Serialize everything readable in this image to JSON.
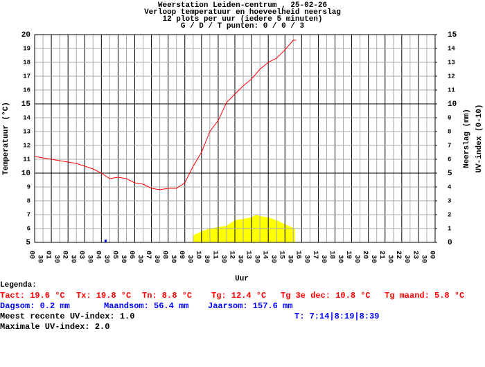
{
  "chart_data": {
    "type": "line",
    "title": [
      "Weerstation Leiden-centrum , 25-02-26",
      "Verloop temperatuur en hoeveelheid neerslag",
      "12 plots per uur (iedere 5 minuten)",
      "G / D / T punten: 0 / 0 / 3"
    ],
    "x_label": "Uur",
    "y_label": "Temperatuur (°C)",
    "y2_label": [
      "Neerslag (mm)",
      "UV-index (0-10)"
    ],
    "xlim": [
      0,
      24
    ],
    "xticks": [
      {
        "value": 0,
        "label": "00"
      },
      {
        "value": 0.5,
        "label": "30"
      },
      {
        "value": 1,
        "label": "01"
      },
      {
        "value": 1.5,
        "label": "30"
      },
      {
        "value": 2,
        "label": "02"
      },
      {
        "value": 2.5,
        "label": "30"
      },
      {
        "value": 3,
        "label": "03"
      },
      {
        "value": 3.5,
        "label": "30"
      },
      {
        "value": 4,
        "label": "04"
      },
      {
        "value": 4.5,
        "label": "30"
      },
      {
        "value": 5,
        "label": "05"
      },
      {
        "value": 5.5,
        "label": "30"
      },
      {
        "value": 6,
        "label": "06"
      },
      {
        "value": 6.5,
        "label": "30"
      },
      {
        "value": 7,
        "label": "07"
      },
      {
        "value": 7.5,
        "label": "30"
      },
      {
        "value": 8,
        "label": "08"
      },
      {
        "value": 8.5,
        "label": "30"
      },
      {
        "value": 9,
        "label": "09"
      },
      {
        "value": 9.5,
        "label": "30"
      },
      {
        "value": 10,
        "label": "10"
      },
      {
        "value": 10.5,
        "label": "30"
      },
      {
        "value": 11,
        "label": "11"
      },
      {
        "value": 11.5,
        "label": "30"
      },
      {
        "value": 12,
        "label": "12"
      },
      {
        "value": 12.5,
        "label": "30"
      },
      {
        "value": 13,
        "label": "13"
      },
      {
        "value": 13.5,
        "label": "30"
      },
      {
        "value": 14,
        "label": "14"
      },
      {
        "value": 14.5,
        "label": "30"
      },
      {
        "value": 15,
        "label": "15"
      },
      {
        "value": 15.5,
        "label": "30"
      },
      {
        "value": 16,
        "label": "16"
      },
      {
        "value": 16.5,
        "label": "30"
      },
      {
        "value": 17,
        "label": "17"
      },
      {
        "value": 17.5,
        "label": "30"
      },
      {
        "value": 18,
        "label": "18"
      },
      {
        "value": 18.5,
        "label": "30"
      },
      {
        "value": 19,
        "label": "19"
      },
      {
        "value": 19.5,
        "label": "30"
      },
      {
        "value": 20,
        "label": "20"
      },
      {
        "value": 20.5,
        "label": "30"
      },
      {
        "value": 21,
        "label": "21"
      },
      {
        "value": 21.5,
        "label": "30"
      },
      {
        "value": 22,
        "label": "22"
      },
      {
        "value": 22.5,
        "label": "30"
      },
      {
        "value": 23,
        "label": "23"
      },
      {
        "value": 23.5,
        "label": "30"
      },
      {
        "value": 24,
        "label": "00"
      }
    ],
    "ylim": [
      5,
      20
    ],
    "yticks": [
      5,
      6,
      7,
      8,
      9,
      10,
      11,
      12,
      13,
      14,
      15,
      16,
      17,
      18,
      19,
      20
    ],
    "y2lim": [
      0,
      15
    ],
    "y2ticks": [
      0,
      1,
      2,
      3,
      4,
      5,
      6,
      7,
      8,
      9,
      10,
      11,
      12,
      13,
      14,
      15
    ],
    "grid": true,
    "series": [
      {
        "type": "line",
        "color": "#ff0000",
        "x": [
          0,
          0.5,
          1,
          1.5,
          2,
          2.5,
          3,
          3.5,
          4,
          4.5,
          5,
          5.5,
          6,
          6.5,
          7,
          7.5,
          8,
          8.5,
          9,
          9.5,
          10,
          10.5,
          11,
          11.5,
          12,
          12.5,
          13,
          13.5,
          14,
          14.5,
          15,
          15.5,
          15.67
        ],
        "values": [
          11.2,
          11.1,
          11.0,
          10.9,
          10.8,
          10.7,
          10.5,
          10.3,
          10.0,
          9.6,
          9.7,
          9.6,
          9.3,
          9.2,
          8.9,
          8.8,
          8.9,
          8.9,
          9.3,
          10.5,
          11.5,
          13.0,
          13.8,
          15.1,
          15.7,
          16.3,
          16.8,
          17.5,
          18.0,
          18.3,
          18.9,
          19.6,
          19.6
        ]
      },
      {
        "type": "area",
        "color": "#ffff00",
        "axis": "y2",
        "x": [
          9.5,
          10,
          10.5,
          11,
          11.5,
          12,
          12.5,
          13,
          13.25,
          13.5,
          14,
          14.5,
          15,
          15.4,
          15.6
        ],
        "values": [
          0.5,
          0.8,
          1.0,
          1.1,
          1.2,
          1.6,
          1.7,
          1.8,
          2.0,
          1.9,
          1.8,
          1.6,
          1.3,
          1.1,
          1.0
        ]
      },
      {
        "type": "bar",
        "color": "#0000ff",
        "axis": "y2",
        "x": [
          4.25
        ],
        "values": [
          0.2
        ]
      }
    ],
    "legend_title": "Legenda:",
    "notes": [
      {
        "text": "Tact: 19.6 °C",
        "color": "#ff0000"
      },
      {
        "text": "Tx: 19.8 °C",
        "color": "#ff0000"
      },
      {
        "text": "Tn: 8.8 °C",
        "color": "#ff0000"
      },
      {
        "text": "Tg: 12.4 °C",
        "color": "#ff0000"
      },
      {
        "text": "Tg 3e dec: 10.8 °C",
        "color": "#ff0000"
      },
      {
        "text": "Tg maand: 5.8 °C",
        "color": "#ff0000"
      },
      {
        "text": "Dagsom: 0.2 mm",
        "color": "#0000ff"
      },
      {
        "text": "Maandsom: 56.4 mm",
        "color": "#0000ff"
      },
      {
        "text": "Jaarsom: 157.6 mm",
        "color": "#0000ff"
      },
      {
        "text": "Meest recente UV-index: 1.0",
        "color": "#000000"
      },
      {
        "text": "T: 7:14|8:19|8:39",
        "color": "#0000ff"
      },
      {
        "text": "Maximale UV-index: 2.0",
        "color": "#000000"
      }
    ]
  }
}
